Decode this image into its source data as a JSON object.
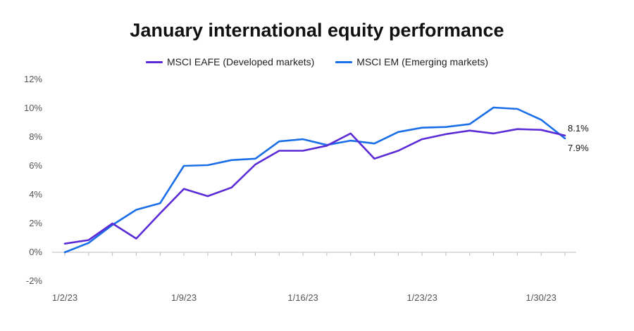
{
  "chart_data": {
    "type": "line",
    "title": "January international equity performance",
    "xlabel": "",
    "ylabel": "",
    "ylim": [
      -2,
      12
    ],
    "yticks": [
      -2,
      0,
      2,
      4,
      6,
      8,
      10,
      12
    ],
    "ytick_labels": [
      "-2%",
      "0%",
      "2%",
      "4%",
      "6%",
      "8%",
      "10%",
      "12%"
    ],
    "x_tick_labels": [
      "1/2/23",
      "1/9/23",
      "1/16/23",
      "1/23/23",
      "1/30/23"
    ],
    "x_tick_index": [
      0,
      5,
      10,
      15,
      20
    ],
    "legend_position": "top-center",
    "series": [
      {
        "name": "MSCI EAFE (Developed markets)",
        "color": "#5b2bd6",
        "values": [
          0.6,
          0.85,
          2.0,
          0.95,
          2.7,
          4.4,
          3.9,
          4.5,
          6.1,
          7.05,
          7.05,
          7.4,
          8.25,
          6.5,
          7.05,
          7.85,
          8.2,
          8.45,
          8.25,
          8.55,
          8.5,
          8.1
        ],
        "end_label": "8.1%"
      },
      {
        "name": "MSCI EM (Emerging markets)",
        "color": "#1a6ee8",
        "values": [
          0.0,
          0.65,
          1.9,
          2.95,
          3.4,
          6.0,
          6.05,
          6.4,
          6.5,
          7.7,
          7.85,
          7.45,
          7.75,
          7.55,
          8.35,
          8.65,
          8.7,
          8.9,
          10.05,
          9.95,
          9.2,
          7.9
        ],
        "end_label": "7.9%"
      }
    ]
  }
}
